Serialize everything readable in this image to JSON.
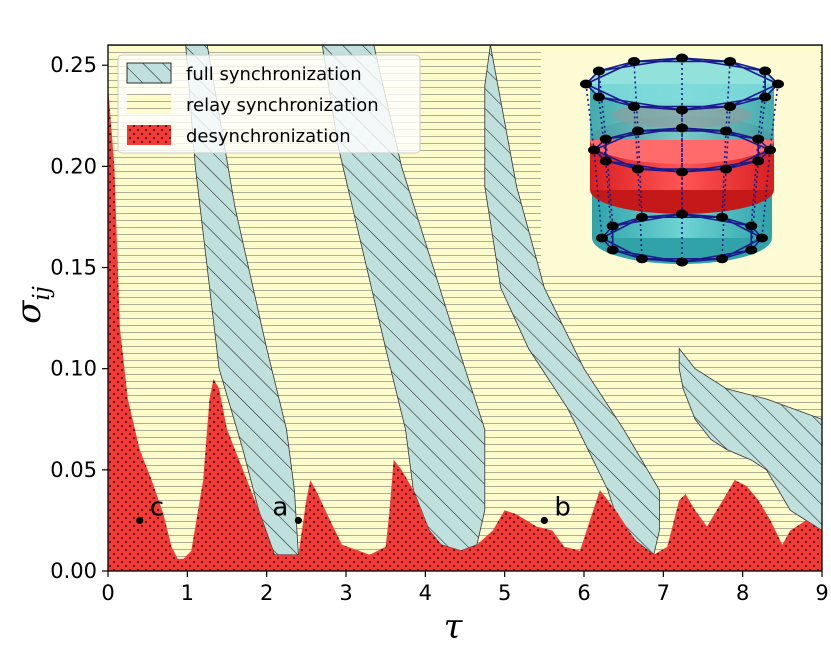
{
  "chart_data": {
    "type": "area",
    "xlabel": "τ",
    "ylabel": "σ",
    "ylabel_subscript": "ij",
    "xlim": [
      0,
      9
    ],
    "ylim": [
      0,
      0.26
    ],
    "x_ticks": [
      0,
      1,
      2,
      3,
      4,
      5,
      6,
      7,
      8,
      9
    ],
    "x_tick_labels": [
      "0",
      "1",
      "2",
      "3",
      "4",
      "5",
      "6",
      "7",
      "8",
      "9"
    ],
    "y_ticks": [
      0,
      0.05,
      0.1,
      0.15,
      0.2,
      0.25
    ],
    "y_tick_labels": [
      "0.00",
      "0.05",
      "0.10",
      "0.15",
      "0.20",
      "0.25"
    ],
    "legend_placement": "top-left",
    "legend": [
      {
        "label": "full synchronization",
        "hatch": "diagonal",
        "color": "#bfe0dc"
      },
      {
        "label": "relay synchronization",
        "hatch": "horizontal",
        "color": "#fdfccb"
      },
      {
        "label": "desynchronization",
        "hatch": "dots",
        "color": "#f23b36"
      }
    ],
    "regions": {
      "desynchronization": [
        [
          0,
          0.24
        ],
        [
          0.08,
          0.2
        ],
        [
          0.15,
          0.12
        ],
        [
          0.25,
          0.085
        ],
        [
          0.4,
          0.06
        ],
        [
          0.55,
          0.045
        ],
        [
          0.7,
          0.028
        ],
        [
          0.8,
          0.012
        ],
        [
          0.88,
          0.006
        ],
        [
          0.95,
          0.006
        ],
        [
          1.05,
          0.01
        ],
        [
          1.2,
          0.045
        ],
        [
          1.28,
          0.085
        ],
        [
          1.33,
          0.095
        ],
        [
          1.4,
          0.09
        ],
        [
          1.5,
          0.07
        ],
        [
          1.7,
          0.05
        ],
        [
          1.9,
          0.03
        ],
        [
          2.05,
          0.013
        ],
        [
          2.1,
          0.008
        ],
        [
          2.4,
          0.008
        ],
        [
          2.5,
          0.035
        ],
        [
          2.55,
          0.045
        ],
        [
          2.62,
          0.04
        ],
        [
          2.8,
          0.025
        ],
        [
          2.95,
          0.013
        ],
        [
          3.3,
          0.008
        ],
        [
          3.5,
          0.012
        ],
        [
          3.55,
          0.03
        ],
        [
          3.6,
          0.055
        ],
        [
          3.7,
          0.05
        ],
        [
          3.85,
          0.04
        ],
        [
          4.05,
          0.02
        ],
        [
          4.2,
          0.013
        ],
        [
          4.45,
          0.01
        ],
        [
          4.65,
          0.013
        ],
        [
          4.85,
          0.02
        ],
        [
          5,
          0.03
        ],
        [
          5.15,
          0.028
        ],
        [
          5.4,
          0.022
        ],
        [
          5.6,
          0.02
        ],
        [
          5.75,
          0.012
        ],
        [
          5.95,
          0.01
        ],
        [
          6.1,
          0.028
        ],
        [
          6.2,
          0.04
        ],
        [
          6.4,
          0.03
        ],
        [
          6.65,
          0.015
        ],
        [
          6.88,
          0.008
        ],
        [
          7.05,
          0.012
        ],
        [
          7.2,
          0.035
        ],
        [
          7.28,
          0.038
        ],
        [
          7.4,
          0.03
        ],
        [
          7.55,
          0.022
        ],
        [
          7.75,
          0.035
        ],
        [
          7.9,
          0.045
        ],
        [
          8.05,
          0.042
        ],
        [
          8.2,
          0.035
        ],
        [
          8.35,
          0.025
        ],
        [
          8.5,
          0.013
        ],
        [
          8.6,
          0.02
        ],
        [
          8.8,
          0.025
        ],
        [
          9,
          0.02
        ],
        [
          9,
          0
        ],
        [
          0,
          0
        ]
      ],
      "full_synchronization": [
        [
          [
            0.98,
            0.26
          ],
          [
            1.25,
            0.26
          ],
          [
            1.6,
            0.18
          ],
          [
            2.0,
            0.11
          ],
          [
            2.25,
            0.07
          ],
          [
            2.35,
            0.04
          ],
          [
            2.4,
            0.008
          ],
          [
            2.1,
            0.008
          ],
          [
            1.9,
            0.03
          ],
          [
            1.7,
            0.06
          ],
          [
            1.4,
            0.1
          ],
          [
            1.1,
            0.2
          ]
        ],
        [
          [
            2.7,
            0.26
          ],
          [
            3.35,
            0.26
          ],
          [
            3.7,
            0.2
          ],
          [
            4.1,
            0.15
          ],
          [
            4.5,
            0.1
          ],
          [
            4.75,
            0.07
          ],
          [
            4.75,
            0.03
          ],
          [
            4.65,
            0.013
          ],
          [
            4.45,
            0.01
          ],
          [
            4.2,
            0.013
          ],
          [
            4.05,
            0.02
          ],
          [
            3.85,
            0.04
          ],
          [
            3.75,
            0.07
          ],
          [
            3.5,
            0.11
          ],
          [
            3.2,
            0.16
          ],
          [
            2.9,
            0.21
          ]
        ],
        [
          [
            4.82,
            0.26
          ],
          [
            5.15,
            0.19
          ],
          [
            5.5,
            0.14
          ],
          [
            6,
            0.1
          ],
          [
            6.5,
            0.07
          ],
          [
            6.95,
            0.04
          ],
          [
            6.95,
            0.02
          ],
          [
            6.88,
            0.008
          ],
          [
            6.65,
            0.015
          ],
          [
            6.4,
            0.028
          ],
          [
            6.3,
            0.04
          ],
          [
            6.05,
            0.06
          ],
          [
            5.8,
            0.08
          ],
          [
            5.3,
            0.11
          ],
          [
            4.95,
            0.14
          ],
          [
            4.75,
            0.19
          ],
          [
            4.75,
            0.24
          ]
        ],
        [
          [
            7.2,
            0.11
          ],
          [
            7.4,
            0.1
          ],
          [
            7.8,
            0.09
          ],
          [
            8.3,
            0.085
          ],
          [
            9,
            0.075
          ],
          [
            9,
            0.02
          ],
          [
            8.8,
            0.025
          ],
          [
            8.6,
            0.03
          ],
          [
            8.45,
            0.04
          ],
          [
            8.3,
            0.05
          ],
          [
            8.1,
            0.055
          ],
          [
            7.8,
            0.06
          ],
          [
            7.6,
            0.065
          ],
          [
            7.4,
            0.075
          ],
          [
            7.25,
            0.09
          ],
          [
            7.2,
            0.1
          ]
        ]
      ]
    },
    "points": [
      {
        "label": "c",
        "x": 0.4,
        "y": 0.025
      },
      {
        "label": "a",
        "x": 2.4,
        "y": 0.025
      },
      {
        "label": "b",
        "x": 5.5,
        "y": 0.025
      }
    ]
  },
  "inset": {
    "description_colors": {
      "outer_ring": "#3cbcbf",
      "middle_ring": "#f22e2e",
      "edges": "#1a1a8c",
      "nodes": "#000000"
    }
  }
}
